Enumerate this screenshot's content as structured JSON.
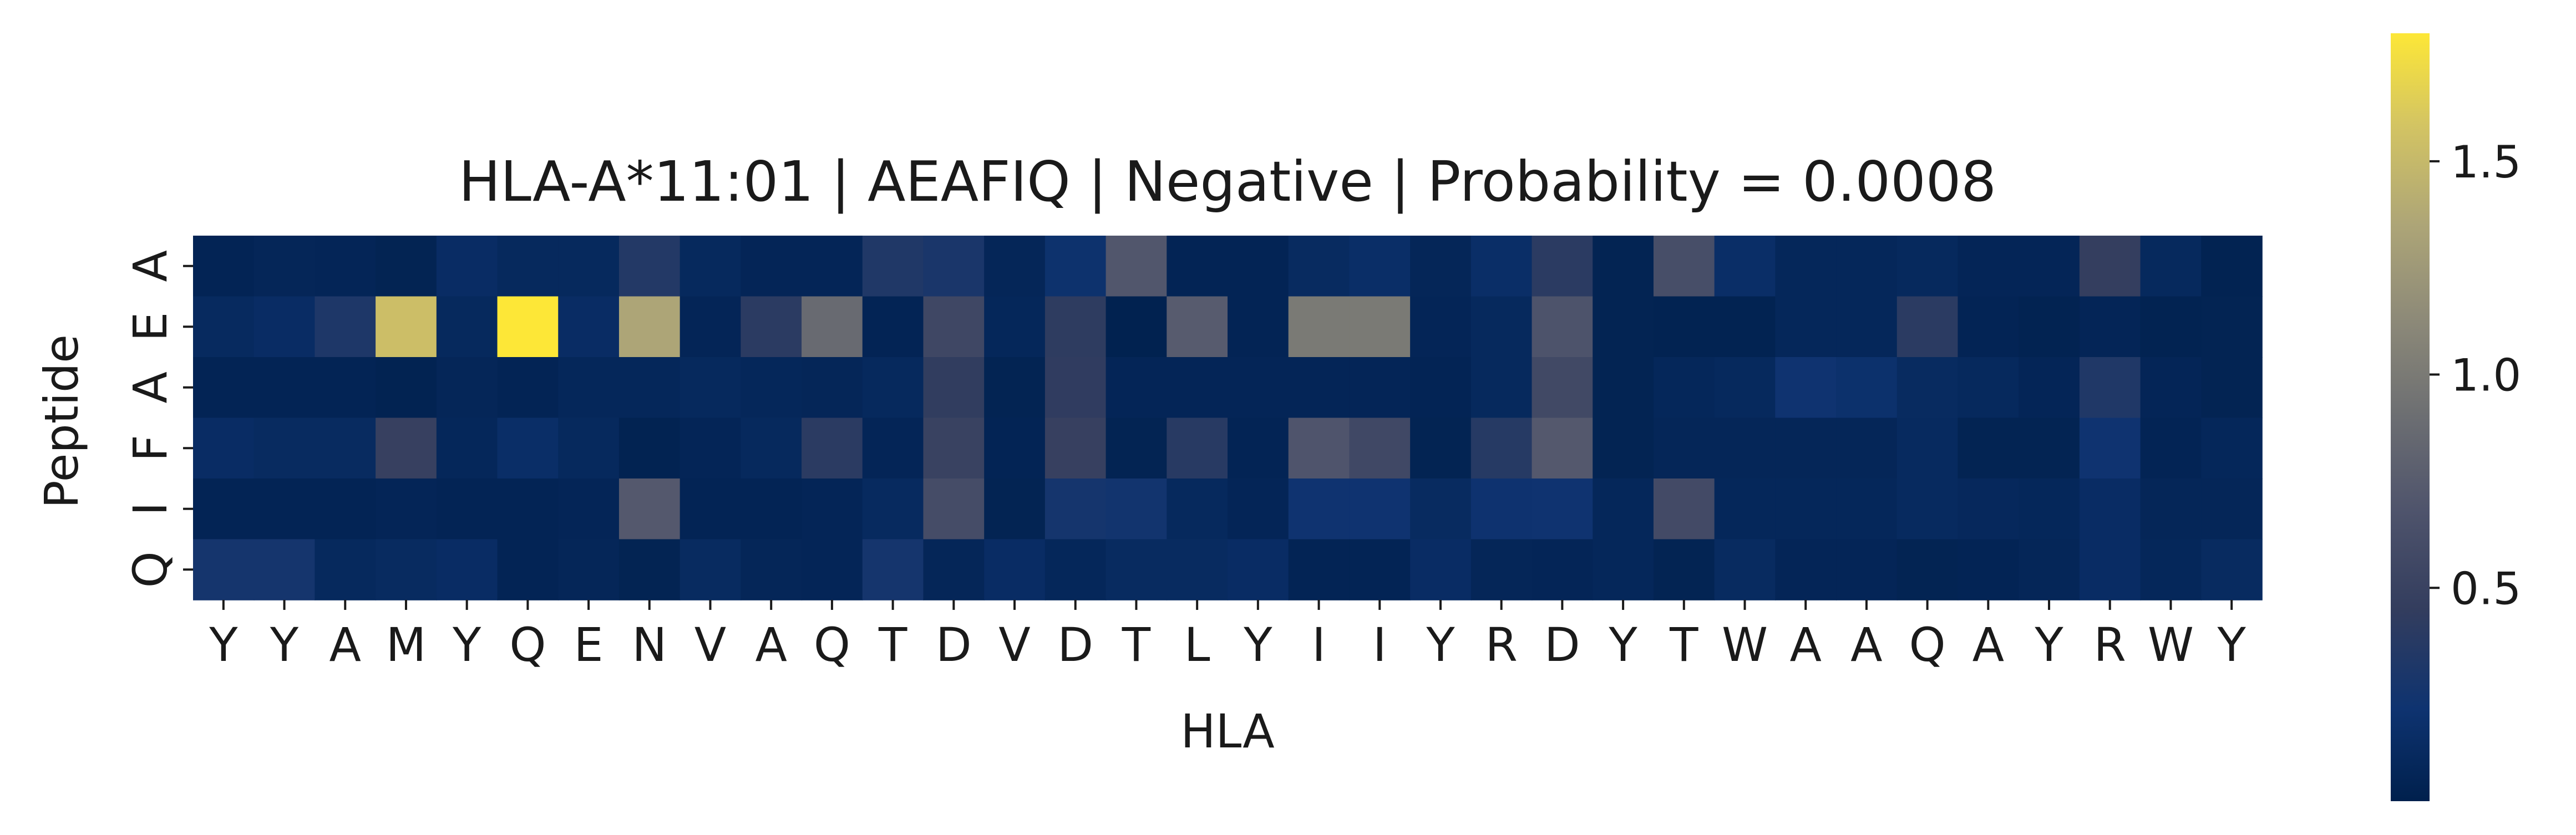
{
  "chart_data": {
    "type": "heatmap",
    "title": "HLA-A*11:01 | AEAFIQ | Negative | Probability = 0.0008",
    "xlabel": "HLA",
    "ylabel": "Peptide",
    "x_categories": [
      "Y",
      "Y",
      "A",
      "M",
      "Y",
      "Q",
      "E",
      "N",
      "V",
      "A",
      "Q",
      "T",
      "D",
      "V",
      "D",
      "T",
      "L",
      "Y",
      "I",
      "I",
      "Y",
      "R",
      "D",
      "Y",
      "T",
      "W",
      "A",
      "A",
      "Q",
      "A",
      "Y",
      "R",
      "W",
      "Y"
    ],
    "y_categories": [
      "A",
      "E",
      "A",
      "F",
      "I",
      "Q"
    ],
    "values": [
      [
        0.05,
        0.07,
        0.06,
        0.04,
        0.14,
        0.1,
        0.1,
        0.35,
        0.1,
        0.06,
        0.06,
        0.33,
        0.29,
        0.07,
        0.2,
        0.7,
        0.05,
        0.05,
        0.12,
        0.16,
        0.07,
        0.16,
        0.4,
        0.04,
        0.62,
        0.16,
        0.08,
        0.08,
        0.1,
        0.06,
        0.06,
        0.46,
        0.1,
        0.03
      ],
      [
        0.11,
        0.14,
        0.32,
        1.54,
        0.1,
        1.8,
        0.14,
        1.35,
        0.06,
        0.4,
        0.87,
        0.05,
        0.55,
        0.08,
        0.42,
        0.02,
        0.74,
        0.05,
        1.0,
        1.0,
        0.06,
        0.1,
        0.67,
        0.04,
        0.03,
        0.03,
        0.08,
        0.08,
        0.4,
        0.05,
        0.03,
        0.06,
        0.03,
        0.04
      ],
      [
        0.05,
        0.05,
        0.05,
        0.03,
        0.07,
        0.05,
        0.08,
        0.08,
        0.1,
        0.08,
        0.07,
        0.1,
        0.44,
        0.04,
        0.43,
        0.06,
        0.06,
        0.06,
        0.06,
        0.06,
        0.05,
        0.1,
        0.57,
        0.04,
        0.08,
        0.1,
        0.22,
        0.19,
        0.12,
        0.1,
        0.06,
        0.33,
        0.06,
        0.04
      ],
      [
        0.14,
        0.12,
        0.12,
        0.48,
        0.08,
        0.16,
        0.1,
        0.03,
        0.06,
        0.1,
        0.4,
        0.06,
        0.5,
        0.05,
        0.48,
        0.04,
        0.38,
        0.05,
        0.68,
        0.56,
        0.04,
        0.37,
        0.72,
        0.04,
        0.07,
        0.07,
        0.07,
        0.07,
        0.11,
        0.04,
        0.04,
        0.22,
        0.05,
        0.08
      ],
      [
        0.05,
        0.05,
        0.05,
        0.06,
        0.05,
        0.05,
        0.06,
        0.72,
        0.05,
        0.05,
        0.06,
        0.11,
        0.6,
        0.04,
        0.26,
        0.24,
        0.1,
        0.06,
        0.22,
        0.22,
        0.12,
        0.21,
        0.22,
        0.08,
        0.58,
        0.08,
        0.08,
        0.08,
        0.11,
        0.09,
        0.08,
        0.14,
        0.07,
        0.07
      ],
      [
        0.26,
        0.26,
        0.1,
        0.12,
        0.14,
        0.05,
        0.07,
        0.04,
        0.12,
        0.07,
        0.06,
        0.26,
        0.07,
        0.14,
        0.08,
        0.12,
        0.12,
        0.14,
        0.05,
        0.05,
        0.14,
        0.07,
        0.06,
        0.08,
        0.04,
        0.12,
        0.06,
        0.06,
        0.04,
        0.05,
        0.07,
        0.14,
        0.08,
        0.12
      ]
    ],
    "value_range": [
      0.0,
      1.8
    ],
    "colormap": "cividis",
    "colorbar": {
      "ticks": [
        0.5,
        1.0,
        1.5
      ],
      "tick_labels": [
        "0.5",
        "1.0",
        "1.5"
      ]
    },
    "grid": false,
    "legend": "colorbar-right"
  }
}
